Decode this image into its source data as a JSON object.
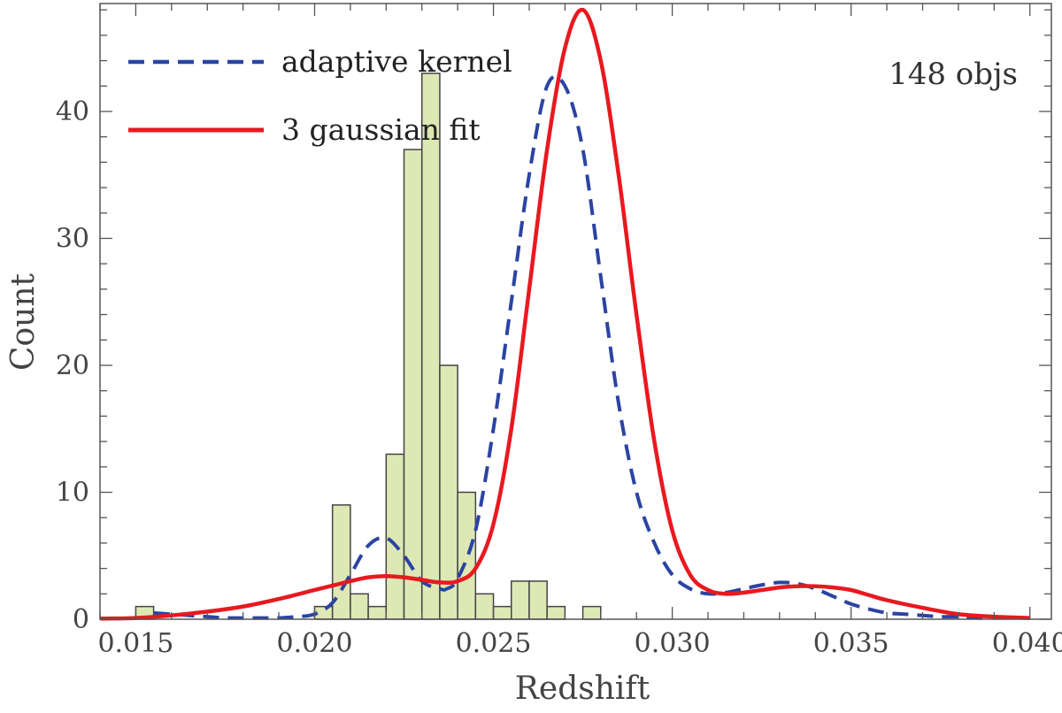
{
  "chart_data": {
    "type": "bar",
    "title": "",
    "xlabel": "Redshift",
    "ylabel": "Count",
    "xlim": [
      0.014,
      0.0406
    ],
    "ylim": [
      0,
      48.5
    ],
    "xticks": [
      0.015,
      0.02,
      0.025,
      0.03,
      0.035,
      0.04
    ],
    "xtick_labels": [
      "0.015",
      "0.020",
      "0.025",
      "0.030",
      "0.035",
      "0.040"
    ],
    "yticks": [
      0,
      10,
      20,
      30,
      40
    ],
    "ytick_labels": [
      "0",
      "10",
      "20",
      "30",
      "40"
    ],
    "grid": false,
    "legend_position": "top-left",
    "annotation": "148 objs",
    "histogram": {
      "bin_edges": [
        0.015,
        0.0155,
        0.016,
        0.0165,
        0.017,
        0.0175,
        0.018,
        0.0185,
        0.019,
        0.0195,
        0.02,
        0.0205,
        0.021,
        0.0215,
        0.022,
        0.0225,
        0.023,
        0.0235,
        0.024,
        0.0245,
        0.025,
        0.0255,
        0.026,
        0.0265,
        0.027,
        0.0275,
        0.028,
        0.0285,
        0.029,
        0.0295,
        0.03,
        0.0305,
        0.031,
        0.0315,
        0.032,
        0.0325,
        0.033,
        0.0335,
        0.034,
        0.0345,
        0.035,
        0.0355,
        0.036,
        0.0365,
        0.037,
        0.0375,
        0.038,
        0.0385,
        0.039,
        0.0395,
        0.04
      ],
      "bins": [
        {
          "x0": 0.015,
          "x1": 0.0155,
          "count": 1
        },
        {
          "x0": 0.02,
          "x1": 0.0205,
          "count": 1
        },
        {
          "x0": 0.0205,
          "x1": 0.021,
          "count": 9
        },
        {
          "x0": 0.021,
          "x1": 0.0215,
          "count": 2
        },
        {
          "x0": 0.0215,
          "x1": 0.022,
          "count": 1
        },
        {
          "x0": 0.022,
          "x1": 0.0225,
          "count": 13
        },
        {
          "x0": 0.0225,
          "x1": 0.023,
          "count": 37
        },
        {
          "x0": 0.023,
          "x1": 0.0235,
          "count": 43
        },
        {
          "x0": 0.0235,
          "x1": 0.024,
          "count": 20
        },
        {
          "x0": 0.024,
          "x1": 0.0245,
          "count": 10
        },
        {
          "x0": 0.0245,
          "x1": 0.025,
          "count": 2
        },
        {
          "x0": 0.025,
          "x1": 0.0255,
          "count": 1
        },
        {
          "x0": 0.0255,
          "x1": 0.026,
          "count": 3
        },
        {
          "x0": 0.026,
          "x1": 0.0265,
          "count": 3
        },
        {
          "x0": 0.0265,
          "x1": 0.027,
          "count": 1
        },
        {
          "x0": 0.027,
          "x1": 0.0275,
          "count": 0
        },
        {
          "x0": 0.0275,
          "x1": 0.028,
          "count": 1
        }
      ],
      "fill": "#dde8b5",
      "stroke": "#444444"
    },
    "series": [
      {
        "name": "adaptive kernel",
        "style": "dashed",
        "color": "#2b44a3",
        "x": [
          0.0155,
          0.016,
          0.0165,
          0.017,
          0.0175,
          0.018,
          0.0185,
          0.019,
          0.0195,
          0.02,
          0.0205,
          0.021,
          0.0215,
          0.022,
          0.0225,
          0.023,
          0.0235,
          0.0237,
          0.024,
          0.0245,
          0.025,
          0.0255,
          0.026,
          0.0265,
          0.027,
          0.0275,
          0.028,
          0.0285,
          0.029,
          0.0295,
          0.03,
          0.0305,
          0.031,
          0.0315,
          0.032,
          0.0325,
          0.033,
          0.0335,
          0.034,
          0.0345,
          0.035,
          0.0355,
          0.036,
          0.0365,
          0.037,
          0.0375,
          0.038,
          0.0385,
          0.039
        ],
        "values": [
          0.5,
          0.4,
          0.3,
          0.2,
          0.1,
          0.1,
          0.1,
          0.1,
          0.2,
          0.4,
          1.3,
          3.5,
          5.8,
          6.4,
          5.0,
          3.0,
          2.4,
          2.4,
          3.2,
          7.0,
          15.0,
          25.0,
          35.0,
          42.0,
          42.0,
          37.0,
          27.0,
          17.0,
          10.0,
          6.0,
          3.5,
          2.4,
          2.0,
          2.1,
          2.4,
          2.7,
          2.9,
          2.8,
          2.4,
          1.8,
          1.2,
          0.8,
          0.5,
          0.4,
          0.3,
          0.2,
          0.2,
          0.1,
          0.1
        ]
      },
      {
        "name": "3 gaussian fit",
        "style": "solid",
        "color": "#e8191f",
        "x": [
          0.014,
          0.015,
          0.016,
          0.017,
          0.018,
          0.019,
          0.02,
          0.021,
          0.0215,
          0.022,
          0.0225,
          0.023,
          0.0235,
          0.024,
          0.0245,
          0.025,
          0.0255,
          0.026,
          0.0265,
          0.027,
          0.0275,
          0.028,
          0.0285,
          0.029,
          0.0295,
          0.03,
          0.0305,
          0.031,
          0.0315,
          0.032,
          0.0325,
          0.033,
          0.0335,
          0.034,
          0.0345,
          0.035,
          0.0355,
          0.036,
          0.037,
          0.038,
          0.039,
          0.04
        ],
        "values": [
          0.05,
          0.1,
          0.3,
          0.6,
          1.0,
          1.6,
          2.3,
          3.0,
          3.3,
          3.4,
          3.3,
          3.1,
          2.9,
          3.0,
          4.0,
          7.5,
          15.0,
          26.0,
          37.0,
          45.0,
          48.0,
          44.0,
          35.0,
          24.0,
          14.0,
          7.0,
          3.5,
          2.3,
          2.0,
          2.1,
          2.3,
          2.5,
          2.6,
          2.6,
          2.5,
          2.3,
          1.9,
          1.5,
          0.9,
          0.4,
          0.2,
          0.1
        ]
      }
    ],
    "colors": {
      "bar_fill": "#dde8b5",
      "bar_stroke": "#444444",
      "axis": "#555555",
      "kernel": "#2b44a3",
      "fit": "#e8191f"
    }
  }
}
